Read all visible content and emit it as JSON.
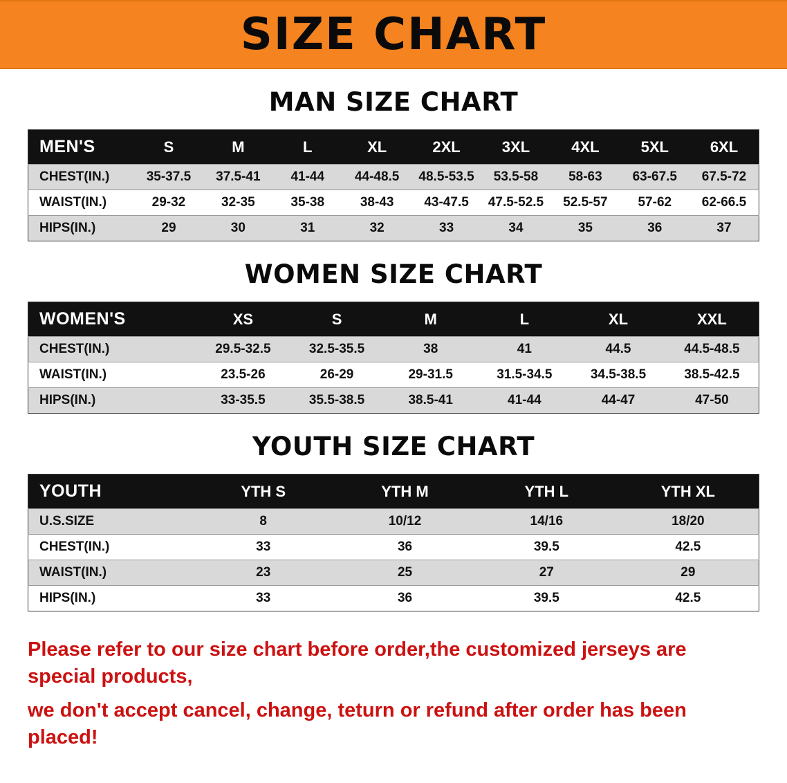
{
  "banner": {
    "title": "SIZE CHART"
  },
  "sections": [
    {
      "id": "men",
      "heading": "MAN SIZE CHART",
      "columns": [
        "MEN'S",
        "S",
        "M",
        "L",
        "XL",
        "2XL",
        "3XL",
        "4XL",
        "5XL",
        "6XL"
      ],
      "rows": [
        [
          "CHEST(IN.)",
          "35-37.5",
          "37.5-41",
          "41-44",
          "44-48.5",
          "48.5-53.5",
          "53.5-58",
          "58-63",
          "63-67.5",
          "67.5-72"
        ],
        [
          "WAIST(IN.)",
          "29-32",
          "32-35",
          "35-38",
          "38-43",
          "43-47.5",
          "47.5-52.5",
          "52.5-57",
          "57-62",
          "62-66.5"
        ],
        [
          "HIPS(IN.)",
          "29",
          "30",
          "31",
          "32",
          "33",
          "34",
          "35",
          "36",
          "37"
        ]
      ]
    },
    {
      "id": "women",
      "heading": "WOMEN SIZE CHART",
      "columns": [
        "WOMEN'S",
        "XS",
        "S",
        "M",
        "L",
        "XL",
        "XXL"
      ],
      "rows": [
        [
          "CHEST(IN.)",
          "29.5-32.5",
          "32.5-35.5",
          "38",
          "41",
          "44.5",
          "44.5-48.5"
        ],
        [
          "WAIST(IN.)",
          "23.5-26",
          "26-29",
          "29-31.5",
          "31.5-34.5",
          "34.5-38.5",
          "38.5-42.5"
        ],
        [
          "HIPS(IN.)",
          "33-35.5",
          "35.5-38.5",
          "38.5-41",
          "41-44",
          "44-47",
          "47-50"
        ]
      ]
    },
    {
      "id": "youth",
      "heading": "YOUTH SIZE CHART",
      "columns": [
        "YOUTH",
        "YTH S",
        "YTH M",
        "YTH L",
        "YTH XL"
      ],
      "rows": [
        [
          "U.S.SIZE",
          "8",
          "10/12",
          "14/16",
          "18/20"
        ],
        [
          "CHEST(IN.)",
          "33",
          "36",
          "39.5",
          "42.5"
        ],
        [
          "WAIST(IN.)",
          "23",
          "25",
          "27",
          "29"
        ],
        [
          "HIPS(IN.)",
          "33",
          "36",
          "39.5",
          "42.5"
        ]
      ]
    }
  ],
  "footer": {
    "lines": [
      "Please refer to our size chart before order,the customized jerseys are special products,",
      "we don't accept cancel, change, teturn or refund after order has been placed!"
    ]
  },
  "colors": {
    "banner_bg": "#f5831f",
    "header_bg": "#111111",
    "row_alt": "#d9d9d9",
    "notice_red": "#cc1111"
  }
}
